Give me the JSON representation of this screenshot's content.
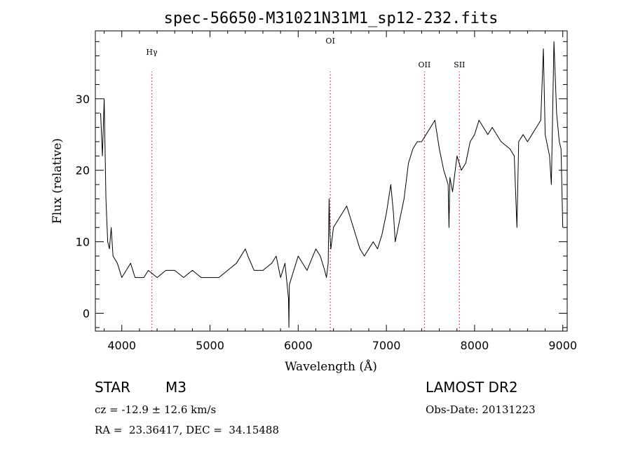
{
  "chart_data": {
    "type": "line",
    "title": "spec-56650-M31021N31M1_sp12-232.fits",
    "xlabel": "Wavelength (Å)",
    "ylabel": "Flux (relative)",
    "xlim": [
      3700,
      9050
    ],
    "ylim": [
      -2.5,
      39.5
    ],
    "x_ticks": [
      4000,
      5000,
      6000,
      7000,
      8000,
      9000
    ],
    "y_ticks": [
      0,
      10,
      20,
      30
    ],
    "line_color": "#000000",
    "marker_color": "#e0202a",
    "spectral_lines": [
      {
        "label": "Hγ",
        "wavelength": 4340
      },
      {
        "label": "OI",
        "wavelength": 6364
      },
      {
        "label": "OII",
        "wavelength": 7431
      },
      {
        "label": "SII",
        "wavelength": 7828
      }
    ],
    "series": [
      {
        "x": [
          3760,
          3780,
          3800,
          3820,
          3840,
          3860,
          3880,
          3900,
          3950,
          4000,
          4050,
          4100,
          4150,
          4200,
          4250,
          4300,
          4400,
          4500,
          4600,
          4700,
          4800,
          4900,
          5000,
          5100,
          5200,
          5300,
          5400,
          5430,
          5500,
          5600,
          5700,
          5750,
          5800,
          5850,
          5890,
          5895,
          5900,
          5950,
          6000,
          6100,
          6200,
          6250,
          6300,
          6320,
          6340,
          6350,
          6360,
          6370,
          6400,
          6450,
          6500,
          6550,
          6600,
          6650,
          6700,
          6750,
          6800,
          6850,
          6900,
          6950,
          7000,
          7050,
          7080,
          7100,
          7150,
          7200,
          7250,
          7300,
          7350,
          7400,
          7450,
          7500,
          7550,
          7600,
          7650,
          7700,
          7710,
          7720,
          7750,
          7800,
          7850,
          7900,
          7950,
          8000,
          8050,
          8100,
          8150,
          8200,
          8300,
          8400,
          8450,
          8480,
          8500,
          8550,
          8600,
          8650,
          8700,
          8750,
          8780,
          8800,
          8850,
          8870,
          8900,
          8930,
          8960,
          8980,
          9000
        ],
        "y": [
          28,
          22,
          30,
          16,
          10,
          9,
          12,
          8,
          7,
          5,
          6,
          7,
          5,
          5,
          5,
          6,
          5,
          6,
          6,
          5,
          6,
          5,
          5,
          5,
          6,
          7,
          9,
          8,
          6,
          6,
          7,
          8,
          5,
          7,
          2,
          -2,
          4,
          6,
          8,
          6,
          9,
          8,
          6,
          5,
          7,
          16,
          11,
          9,
          12,
          13,
          14,
          15,
          13,
          11,
          9,
          8,
          9,
          10,
          9,
          11,
          14,
          18,
          14,
          10,
          13,
          16,
          21,
          23,
          24,
          24,
          25,
          26,
          27,
          23,
          20,
          18,
          12,
          19,
          17,
          22,
          20,
          21,
          24,
          25,
          27,
          26,
          25,
          26,
          24,
          23,
          22,
          12,
          24,
          25,
          24,
          25,
          26,
          27,
          37,
          25,
          22,
          18,
          38,
          28,
          24,
          23,
          12
        ]
      }
    ]
  },
  "info": {
    "object_type": "STAR",
    "subclass": "M3",
    "redshift_line": "cz = -12.9 ± 12.6 km/s",
    "coords_line": "RA =  23.36417, DEC =  34.15488",
    "survey": "LAMOST DR2",
    "obs_date": "Obs-Date: 20131223"
  }
}
